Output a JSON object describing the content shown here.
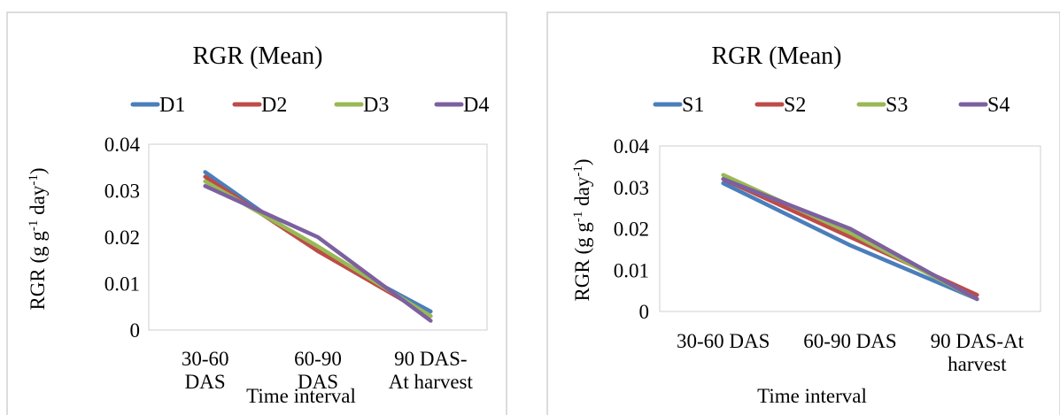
{
  "heading": "",
  "colors": {
    "series1": "#4a7ebb",
    "series2": "#be4b48",
    "series3": "#98b954",
    "series4": "#7d60a0"
  },
  "chart_data": [
    {
      "type": "line",
      "title": "RGR (Mean)",
      "categories": [
        "30-60 DAS",
        "60-90 DAS",
        "90 DAS-At harvest"
      ],
      "category_lines": [
        [
          "30-60",
          "DAS"
        ],
        [
          "60-90",
          "DAS"
        ],
        [
          "90 DAS-",
          "At harvest"
        ]
      ],
      "series": [
        {
          "name": "D1",
          "values": [
            0.034,
            0.017,
            0.004
          ]
        },
        {
          "name": "D2",
          "values": [
            0.033,
            0.017,
            0.003
          ]
        },
        {
          "name": "D3",
          "values": [
            0.032,
            0.018,
            0.003
          ]
        },
        {
          "name": "D4",
          "values": [
            0.031,
            0.02,
            0.002
          ]
        }
      ],
      "ylabel_main": "RGR (g g",
      "ylabel_sup1": "-1",
      "ylabel_mid": " day",
      "ylabel_sup2": "-1",
      "ylabel_end": ")",
      "xlabel": "Time interval",
      "yticks": [
        "0",
        "0.01",
        "0.02",
        "0.03",
        "0.04"
      ],
      "ylim": [
        0,
        0.04
      ],
      "legend_position": "top",
      "grid": false
    },
    {
      "type": "line",
      "title": "RGR (Mean)",
      "categories": [
        "30-60 DAS",
        "60-90 DAS",
        "90 DAS-At harvest"
      ],
      "category_lines": [
        [
          "30-60 DAS"
        ],
        [
          "60-90 DAS"
        ],
        [
          "90 DAS-At",
          "harvest"
        ]
      ],
      "series": [
        {
          "name": "S1",
          "values": [
            0.031,
            0.016,
            0.003
          ]
        },
        {
          "name": "S2",
          "values": [
            0.032,
            0.018,
            0.004
          ]
        },
        {
          "name": "S3",
          "values": [
            0.033,
            0.019,
            0.003
          ]
        },
        {
          "name": "S4",
          "values": [
            0.032,
            0.02,
            0.003
          ]
        }
      ],
      "ylabel_main": "RGR (g g",
      "ylabel_sup1": "-1",
      "ylabel_mid": " day",
      "ylabel_sup2": "-1",
      "ylabel_end": ")",
      "xlabel": "Time interval",
      "yticks": [
        "0",
        "0.01",
        "0.02",
        "0.03",
        "0.04"
      ],
      "ylim": [
        0,
        0.04
      ],
      "legend_position": "top",
      "grid": false
    }
  ]
}
